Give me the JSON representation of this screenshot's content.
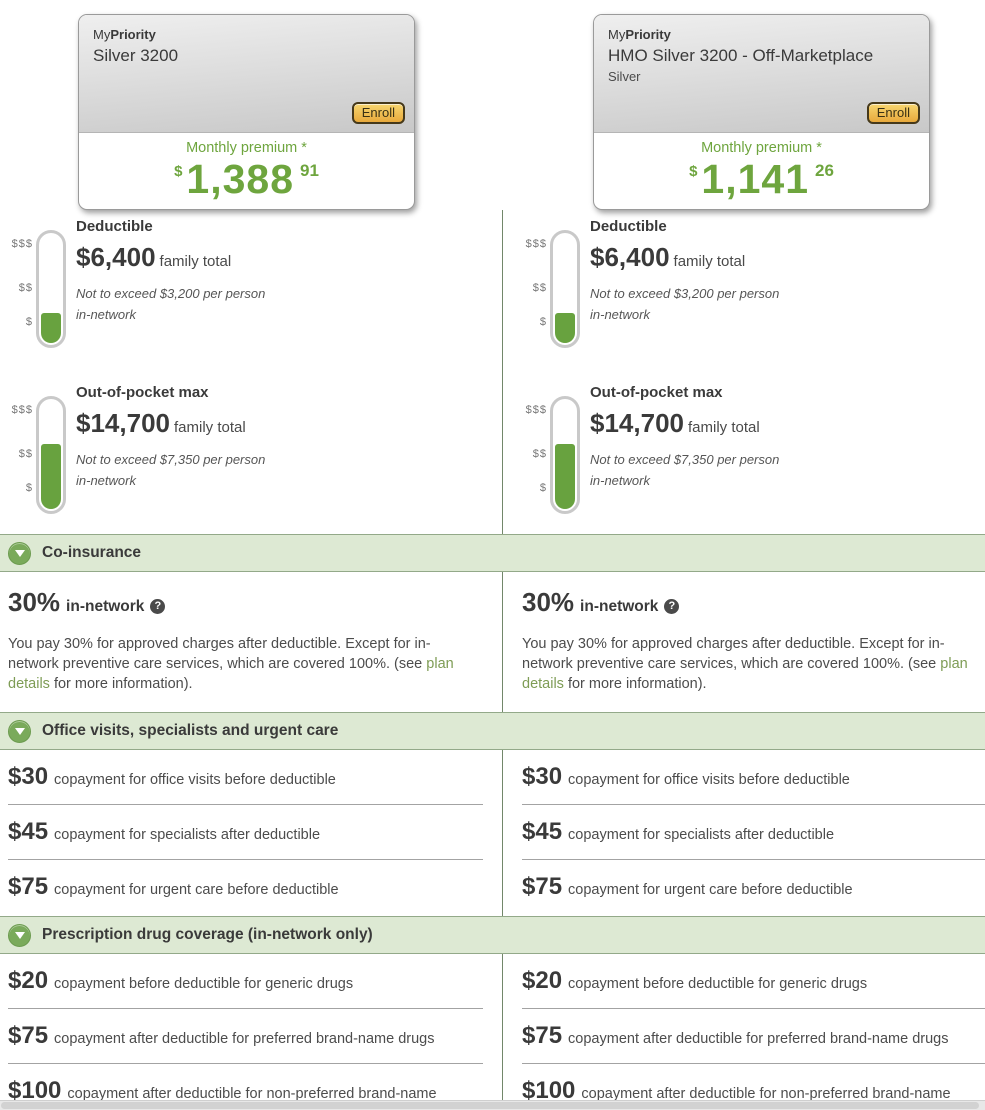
{
  "colors": {
    "accent_green": "#6ea53e",
    "link_green": "#7e9c55",
    "band_background": "#dde9d3",
    "gauge_fill_green": "#68a23f",
    "enroll_orange": "#e9a93d"
  },
  "gauge": {
    "labels": [
      "$$$",
      "$$",
      "$"
    ],
    "deductible_fill_percent": 27,
    "oop_fill_percent": 58
  },
  "section_headers": {
    "coinsurance": "Co-insurance",
    "office": "Office visits, specialists and urgent care",
    "rx": "Prescription drug coverage (in-network only)"
  },
  "plans": [
    {
      "brand_prefix": "My",
      "brand_bold": "Priority",
      "title": "Silver 3200",
      "subtitle": "",
      "enroll_label": "Enroll",
      "premium_label": "Monthly premium *",
      "premium_currency": "$",
      "premium_whole": "1,388",
      "premium_cents": "91",
      "deductible": {
        "title": "Deductible",
        "amount": "$6,400",
        "unit": "family total",
        "note_line1": "Not to exceed $3,200 per person",
        "note_line2": "in-network"
      },
      "oop_max": {
        "title": "Out-of-pocket max",
        "amount": "$14,700",
        "unit": "family total",
        "note_line1": "Not to exceed $7,350 per person",
        "note_line2": "in-network"
      },
      "coinsurance": {
        "value": "30%",
        "network_label": "in-network",
        "help_glyph": "?",
        "description_before": "You pay 30% for approved charges after deductible. Except for in-network preventive care services, which are covered 100%. (see ",
        "link_text": "plan details",
        "description_after": " for more information)."
      },
      "office_rows": [
        {
          "amount": "$30",
          "text": "copayment for office visits before deductible"
        },
        {
          "amount": "$45",
          "text": "copayment for specialists after deductible"
        },
        {
          "amount": "$75",
          "text": "copayment for urgent care before deductible"
        }
      ],
      "rx_rows": [
        {
          "amount": "$20",
          "text": "copayment before deductible for generic drugs"
        },
        {
          "amount": "$75",
          "text": "copayment after deductible for preferred brand-name drugs"
        },
        {
          "amount": "$100",
          "text": "copayment after deductible for non-preferred brand-name"
        }
      ]
    },
    {
      "brand_prefix": "My",
      "brand_bold": "Priority",
      "title": "HMO Silver 3200 - Off-Marketplace",
      "subtitle": "Silver",
      "enroll_label": "Enroll",
      "premium_label": "Monthly premium *",
      "premium_currency": "$",
      "premium_whole": "1,141",
      "premium_cents": "26",
      "deductible": {
        "title": "Deductible",
        "amount": "$6,400",
        "unit": "family total",
        "note_line1": "Not to exceed $3,200 per person",
        "note_line2": "in-network"
      },
      "oop_max": {
        "title": "Out-of-pocket max",
        "amount": "$14,700",
        "unit": "family total",
        "note_line1": "Not to exceed $7,350 per person",
        "note_line2": "in-network"
      },
      "coinsurance": {
        "value": "30%",
        "network_label": "in-network",
        "help_glyph": "?",
        "description_before": "You pay 30% for approved charges after deductible. Except for in-network preventive care services, which are covered 100%. (see ",
        "link_text": "plan details",
        "description_after": " for more information)."
      },
      "office_rows": [
        {
          "amount": "$30",
          "text": "copayment for office visits before deductible"
        },
        {
          "amount": "$45",
          "text": "copayment for specialists after deductible"
        },
        {
          "amount": "$75",
          "text": "copayment for urgent care before deductible"
        }
      ],
      "rx_rows": [
        {
          "amount": "$20",
          "text": "copayment before deductible for generic drugs"
        },
        {
          "amount": "$75",
          "text": "copayment after deductible for preferred brand-name drugs"
        },
        {
          "amount": "$100",
          "text": "copayment after deductible for non-preferred brand-name"
        }
      ]
    }
  ]
}
